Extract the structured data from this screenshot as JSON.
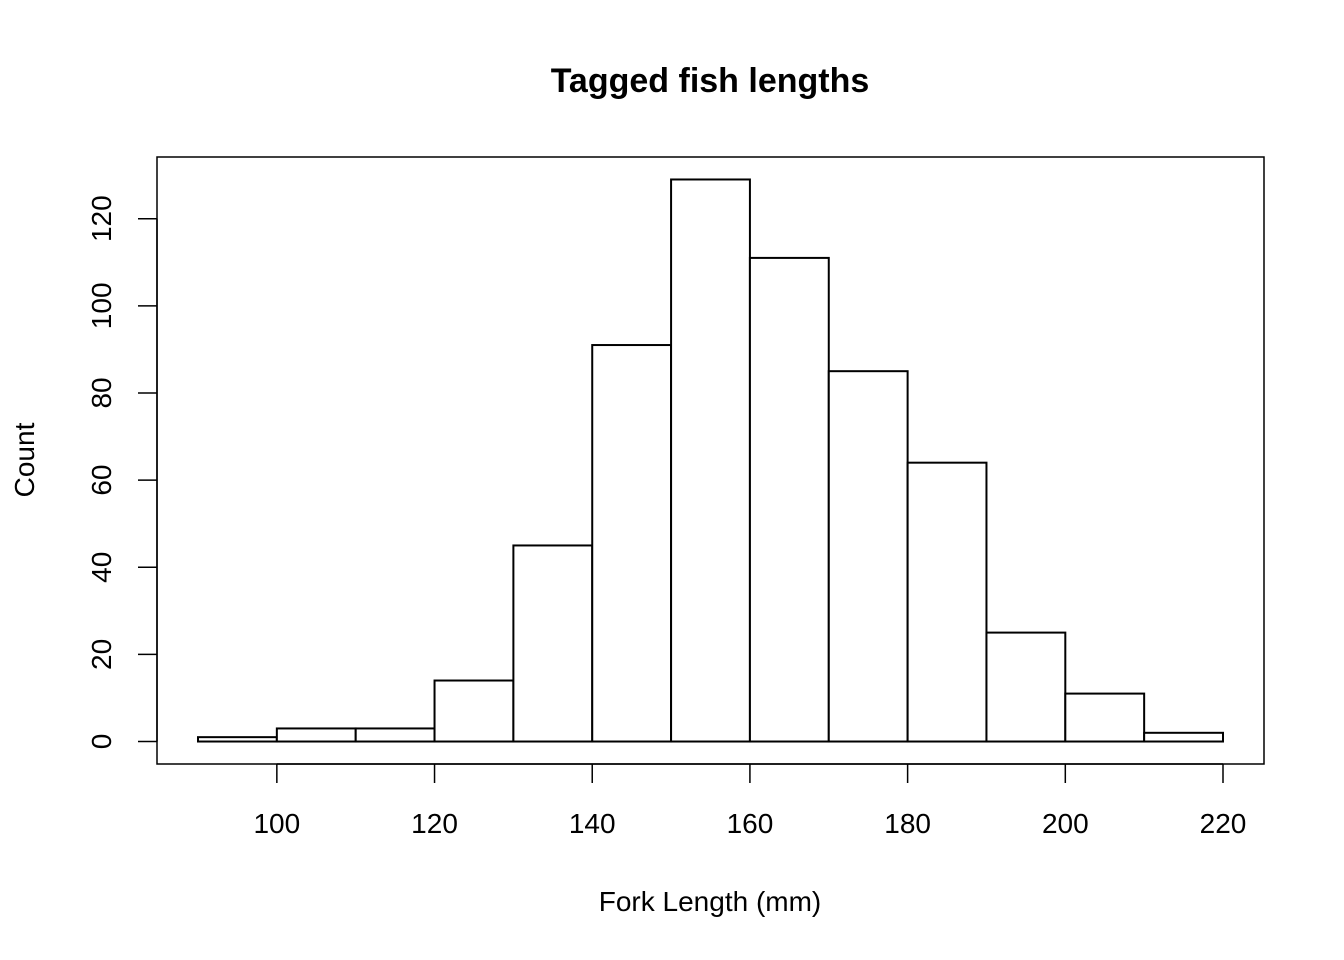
{
  "chart_data": {
    "type": "bar",
    "title": "Tagged fish lengths",
    "xlabel": "Fork Length (mm)",
    "ylabel": "Count",
    "bins": [
      {
        "start": 90,
        "end": 100,
        "count": 1
      },
      {
        "start": 100,
        "end": 110,
        "count": 3
      },
      {
        "start": 110,
        "end": 120,
        "count": 3
      },
      {
        "start": 120,
        "end": 130,
        "count": 14
      },
      {
        "start": 130,
        "end": 140,
        "count": 45
      },
      {
        "start": 140,
        "end": 150,
        "count": 91
      },
      {
        "start": 150,
        "end": 160,
        "count": 129
      },
      {
        "start": 160,
        "end": 170,
        "count": 111
      },
      {
        "start": 170,
        "end": 180,
        "count": 85
      },
      {
        "start": 180,
        "end": 190,
        "count": 64
      },
      {
        "start": 190,
        "end": 200,
        "count": 25
      },
      {
        "start": 200,
        "end": 210,
        "count": 11
      },
      {
        "start": 210,
        "end": 220,
        "count": 2
      }
    ],
    "x_ticks": [
      100,
      120,
      140,
      160,
      180,
      200,
      220
    ],
    "y_ticks": [
      0,
      20,
      40,
      60,
      80,
      100,
      120
    ],
    "xlim": [
      84.8,
      225.2
    ],
    "ylim": [
      -5.16,
      134.16
    ],
    "grid": false,
    "bar_fill": "#ffffff",
    "bar_stroke": "#000000"
  }
}
